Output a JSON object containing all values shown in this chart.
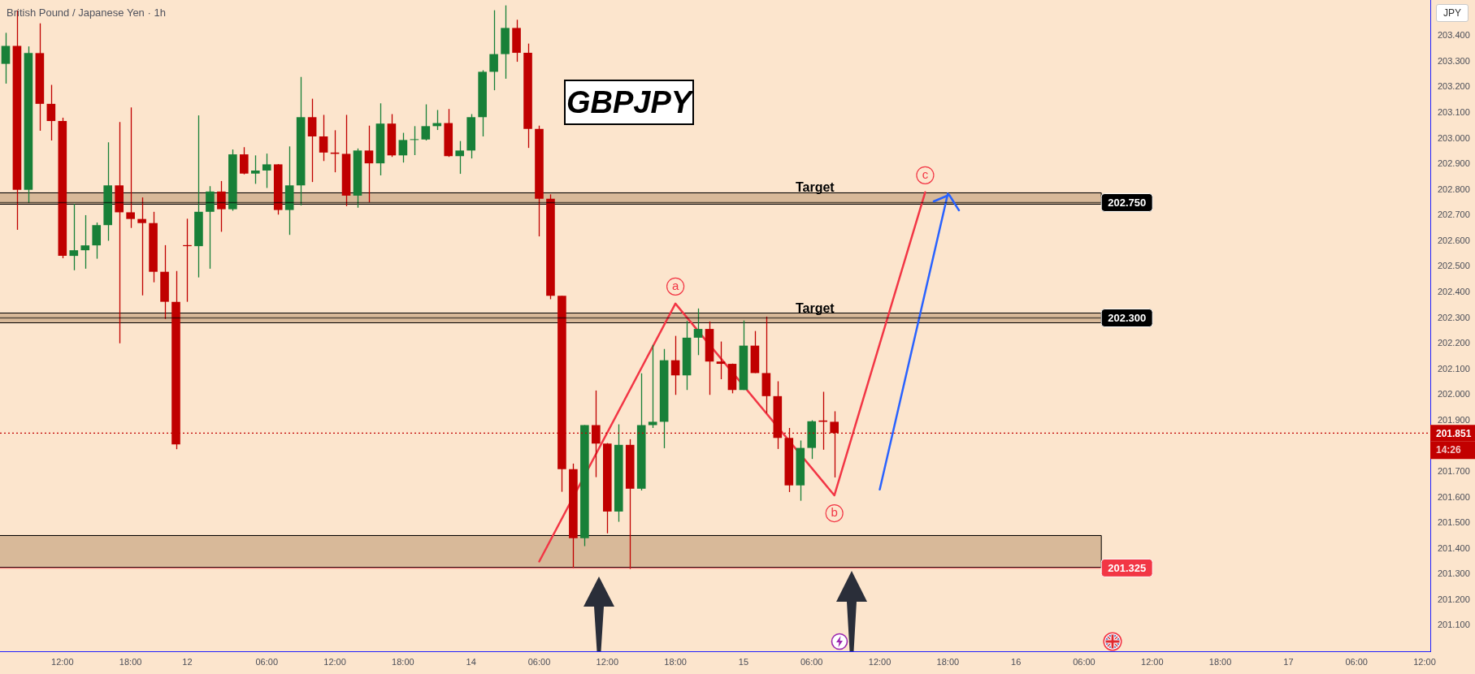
{
  "chart_data": {
    "type": "candlestick",
    "title": "GBPJPY",
    "subtitle": "British Pound / Japanese Yen · 1h",
    "ylabel": "JPY",
    "categories": [
      null,
      null,
      null,
      null,
      null,
      "12:00",
      null,
      null,
      null,
      null,
      null,
      "18:00",
      null,
      null,
      null,
      null,
      "12",
      null,
      null,
      null,
      null,
      null,
      null,
      "06:00",
      null,
      null,
      null,
      null,
      null,
      "12:00",
      null,
      null,
      null,
      null,
      null,
      "18:00",
      null,
      null,
      null,
      null,
      null,
      "14",
      null,
      null,
      null,
      null,
      null,
      "06:00",
      null,
      null,
      null,
      null,
      null,
      "12:00",
      null,
      null,
      null,
      null,
      null,
      "18:00",
      null,
      null,
      null,
      null,
      null,
      "15",
      null,
      null,
      null,
      null,
      null,
      "06:00",
      null,
      null,
      null,
      null,
      null,
      "12:00",
      null,
      null,
      null,
      null,
      null,
      "18:00",
      null,
      null,
      null,
      null,
      null,
      "16",
      null,
      null,
      null,
      null,
      null,
      "06:00",
      null,
      null,
      null,
      null,
      null,
      "12:00",
      null,
      null,
      null,
      null,
      null,
      "18:00",
      null,
      null,
      null,
      null,
      null,
      "17",
      null,
      null,
      null,
      null,
      null,
      "06:00",
      null,
      null,
      null,
      null,
      null,
      "12:00"
    ],
    "ohlc": [
      [
        203.291,
        203.412,
        203.214,
        203.361
      ],
      [
        203.361,
        203.5,
        202.644,
        202.8
      ],
      [
        202.8,
        203.359,
        202.749,
        203.333
      ],
      [
        203.333,
        203.449,
        203.03,
        203.135
      ],
      [
        203.135,
        203.209,
        202.992,
        203.068
      ],
      [
        203.068,
        203.081,
        202.533,
        202.542
      ],
      [
        202.542,
        202.745,
        202.486,
        202.564
      ],
      [
        202.564,
        202.701,
        202.492,
        202.583
      ],
      [
        202.583,
        202.672,
        202.531,
        202.662
      ],
      [
        202.662,
        202.985,
        202.601,
        202.817
      ],
      [
        202.817,
        203.064,
        202.201,
        202.712
      ],
      [
        202.712,
        203.121,
        202.651,
        202.686
      ],
      [
        202.686,
        202.77,
        202.388,
        202.67
      ],
      [
        202.67,
        202.714,
        202.439,
        202.48
      ],
      [
        202.48,
        202.584,
        202.296,
        202.363
      ],
      [
        202.363,
        202.483,
        201.788,
        201.807
      ],
      [
        202.584,
        202.687,
        202.363,
        202.58
      ],
      [
        202.58,
        203.09,
        202.458,
        202.714
      ],
      [
        202.714,
        202.814,
        202.492,
        202.793
      ],
      [
        202.793,
        202.834,
        202.636,
        202.724
      ],
      [
        202.724,
        202.957,
        202.718,
        202.938
      ],
      [
        202.938,
        202.966,
        202.86,
        202.863
      ],
      [
        202.863,
        202.934,
        202.823,
        202.875
      ],
      [
        202.875,
        202.941,
        202.807,
        202.899
      ],
      [
        202.899,
        202.9,
        202.703,
        202.721
      ],
      [
        202.721,
        202.969,
        202.624,
        202.817
      ],
      [
        202.817,
        203.24,
        202.739,
        203.083
      ],
      [
        203.083,
        203.155,
        202.83,
        203.008
      ],
      [
        203.008,
        203.092,
        202.912,
        202.945
      ],
      [
        202.945,
        203.032,
        202.868,
        202.94
      ],
      [
        202.94,
        203.092,
        202.736,
        202.777
      ],
      [
        202.777,
        202.961,
        202.73,
        202.953
      ],
      [
        202.953,
        203.05,
        202.751,
        202.903
      ],
      [
        202.903,
        203.137,
        202.856,
        203.058
      ],
      [
        203.058,
        203.095,
        202.928,
        202.934
      ],
      [
        202.934,
        203.022,
        202.906,
        202.994
      ],
      [
        202.994,
        203.048,
        202.935,
        202.996
      ],
      [
        202.996,
        203.133,
        202.992,
        203.048
      ],
      [
        203.048,
        203.111,
        203.033,
        203.06
      ],
      [
        203.06,
        203.115,
        202.928,
        202.931
      ],
      [
        202.931,
        202.99,
        202.862,
        202.953
      ],
      [
        202.953,
        203.095,
        202.922,
        203.083
      ],
      [
        203.083,
        203.266,
        203.008,
        203.26
      ],
      [
        203.26,
        203.5,
        203.188,
        203.329
      ],
      [
        203.329,
        203.519,
        203.233,
        203.431
      ],
      [
        203.431,
        203.463,
        203.299,
        203.334
      ],
      [
        203.334,
        203.37,
        202.963,
        203.037
      ],
      [
        203.037,
        203.05,
        202.618,
        202.765
      ],
      [
        202.765,
        202.782,
        202.373,
        202.386
      ],
      [
        202.386,
        202.386,
        201.622,
        201.71
      ],
      [
        201.71,
        201.732,
        201.325,
        201.441
      ],
      [
        201.441,
        201.882,
        201.41,
        201.882
      ],
      [
        201.882,
        202.017,
        201.679,
        201.81
      ],
      [
        201.81,
        201.812,
        201.46,
        201.545
      ],
      [
        201.545,
        201.885,
        201.505,
        201.805
      ],
      [
        201.805,
        201.827,
        201.321,
        201.634
      ],
      [
        201.634,
        202.084,
        201.627,
        201.882
      ],
      [
        201.882,
        202.195,
        201.871,
        201.895
      ],
      [
        201.895,
        202.179,
        201.792,
        202.135
      ],
      [
        202.135,
        202.23,
        202.0,
        202.076
      ],
      [
        202.076,
        202.288,
        202.019,
        202.223
      ],
      [
        202.223,
        202.337,
        202.155,
        202.257
      ],
      [
        202.257,
        202.286,
        202.0,
        202.13
      ],
      [
        202.13,
        202.208,
        202.061,
        202.121
      ],
      [
        202.121,
        202.122,
        202.006,
        202.019
      ],
      [
        202.019,
        202.29,
        202.019,
        202.192
      ],
      [
        202.192,
        202.249,
        202.085,
        202.085
      ],
      [
        202.085,
        202.305,
        201.929,
        201.995
      ],
      [
        201.995,
        202.053,
        201.789,
        201.832
      ],
      [
        201.832,
        201.871,
        201.621,
        201.647
      ],
      [
        201.647,
        201.822,
        201.587,
        201.793
      ],
      [
        201.793,
        201.901,
        201.75,
        201.897
      ],
      [
        201.9,
        202.012,
        201.786,
        201.895
      ],
      [
        201.895,
        201.936,
        201.678,
        201.851
      ],
      null,
      null,
      null,
      null,
      null,
      null,
      null,
      null,
      null,
      null,
      null,
      null,
      null,
      null,
      null,
      null,
      null,
      null,
      null,
      null,
      null,
      null,
      null,
      null,
      null,
      null,
      null,
      null,
      null,
      null,
      null,
      null,
      null,
      null,
      null,
      null,
      null,
      null,
      null,
      null,
      null,
      null,
      null,
      null,
      null,
      null,
      null,
      null,
      null,
      null,
      null,
      null
    ],
    "colors": [
      "#188038",
      "#c00000",
      "#188038",
      "#c00000",
      "#c00000",
      "#c00000",
      "#188038",
      "#188038",
      "#188038",
      "#188038",
      "#c00000",
      "#c00000",
      "#c00000",
      "#c00000",
      "#c00000",
      "#c00000",
      "#c00000",
      "#188038",
      "#188038",
      "#c00000",
      "#188038",
      "#c00000",
      "#188038",
      "#188038",
      "#c00000",
      "#188038",
      "#188038",
      "#c00000",
      "#c00000",
      "#c00000",
      "#c00000",
      "#188038",
      "#c00000",
      "#188038",
      "#c00000",
      "#188038",
      "#188038",
      "#188038",
      "#188038",
      "#c00000",
      "#188038",
      "#188038",
      "#188038",
      "#188038",
      "#188038",
      "#c00000",
      "#c00000",
      "#c00000",
      "#c00000",
      "#c00000",
      "#c00000",
      "#188038",
      "#c00000",
      "#c00000",
      "#188038",
      "#c00000",
      "#188038",
      "#188038",
      "#188038",
      "#c00000",
      "#188038",
      "#188038",
      "#c00000",
      "#c00000",
      "#c00000",
      "#188038",
      "#c00000",
      "#c00000",
      "#c00000",
      "#c00000",
      "#188038",
      "#188038",
      "#c00000",
      "#c00000",
      null,
      null,
      null,
      null,
      null,
      null,
      null,
      null,
      null,
      null,
      null,
      null,
      null,
      null,
      null,
      null,
      null,
      null,
      null,
      null,
      null,
      null,
      null,
      null,
      null,
      null,
      null,
      null,
      null,
      null,
      null,
      null,
      null,
      null,
      null,
      null,
      null,
      null,
      null,
      null,
      null,
      null,
      null,
      null,
      null,
      null,
      null,
      null,
      null,
      null,
      null,
      null
    ],
    "series": [
      {
        "type": "line",
        "color": "#f23645",
        "values": [
          null,
          null,
          null,
          null,
          null,
          null,
          null,
          null,
          null,
          null,
          null,
          null,
          null,
          null,
          null,
          null,
          null,
          null,
          null,
          null,
          null,
          null,
          null,
          null,
          null,
          null,
          null,
          null,
          null,
          null,
          null,
          null,
          null,
          null,
          null,
          null,
          null,
          null,
          null,
          null,
          null,
          null,
          null,
          null,
          null,
          null,
          null,
          201.35,
          null,
          null,
          null,
          null,
          null,
          null,
          null,
          null,
          null,
          null,
          null,
          202.356,
          null,
          null,
          null,
          null,
          null,
          null,
          null,
          null,
          null,
          null,
          null,
          null,
          null,
          201.608,
          null,
          null,
          null,
          null,
          null,
          null,
          null,
          202.79,
          null,
          null,
          null,
          null,
          null,
          null,
          null,
          null,
          null,
          null,
          null,
          null,
          null,
          null,
          null,
          null,
          null,
          null,
          null,
          null,
          null,
          null,
          null,
          null,
          null,
          null,
          null,
          null,
          null,
          null,
          null,
          null,
          null,
          null,
          null,
          null,
          null,
          null,
          null,
          null,
          null,
          null,
          null,
          null
        ]
      },
      {
        "type": "line",
        "color": "#2962ff",
        "values": [
          null,
          null,
          null,
          null,
          null,
          null,
          null,
          null,
          null,
          null,
          null,
          null,
          null,
          null,
          null,
          null,
          null,
          null,
          null,
          null,
          null,
          null,
          null,
          null,
          null,
          null,
          null,
          null,
          null,
          null,
          null,
          null,
          null,
          null,
          null,
          null,
          null,
          null,
          null,
          null,
          null,
          null,
          null,
          null,
          null,
          null,
          null,
          null,
          null,
          null,
          null,
          null,
          null,
          null,
          null,
          null,
          null,
          null,
          null,
          null,
          null,
          null,
          null,
          null,
          null,
          null,
          null,
          null,
          null,
          null,
          null,
          null,
          null,
          null,
          null,
          null,
          null,
          201.631,
          null,
          null,
          null,
          null,
          null,
          202.785,
          null,
          null,
          null,
          null,
          null,
          null,
          null,
          null,
          null,
          null,
          null,
          null,
          null,
          null,
          null,
          null,
          null,
          null,
          null,
          null,
          null,
          null,
          null,
          null,
          null,
          null,
          null,
          null,
          null,
          null,
          null,
          null,
          null,
          null,
          null,
          null,
          null,
          null,
          null,
          null,
          null,
          null
        ]
      }
    ],
    "ylim": [
      201.0,
      203.54
    ],
    "yticks": [
      {
        "value": 201.1,
        "label": "201.100"
      },
      {
        "value": 201.2,
        "label": "201.200"
      },
      {
        "value": 201.3,
        "label": "201.300"
      },
      {
        "value": 201.4,
        "label": "201.400"
      },
      {
        "value": 201.5,
        "label": "201.500"
      },
      {
        "value": 201.6,
        "label": "201.600"
      },
      {
        "value": 201.7,
        "label": "201.700"
      },
      {
        "value": 201.9,
        "label": "201.900"
      },
      {
        "value": 202.0,
        "label": "202.000"
      },
      {
        "value": 202.1,
        "label": "202.100"
      },
      {
        "value": 202.2,
        "label": "202.200"
      },
      {
        "value": 202.3,
        "label": "202.300"
      },
      {
        "value": 202.4,
        "label": "202.400"
      },
      {
        "value": 202.5,
        "label": "202.500"
      },
      {
        "value": 202.6,
        "label": "202.600"
      },
      {
        "value": 202.7,
        "label": "202.700"
      },
      {
        "value": 202.8,
        "label": "202.800"
      },
      {
        "value": 202.9,
        "label": "202.900"
      },
      {
        "value": 203.0,
        "label": "203.000"
      },
      {
        "value": 203.1,
        "label": "203.100"
      },
      {
        "value": 203.2,
        "label": "203.200"
      },
      {
        "value": 203.3,
        "label": "203.300"
      },
      {
        "value": 203.4,
        "label": "203.400"
      }
    ],
    "bands": [
      {
        "axis": "y",
        "from": 202.745,
        "to": 202.79,
        "label": "Target",
        "color": "#d8b999"
      },
      {
        "axis": "y",
        "from": 202.283,
        "to": 202.32,
        "label": "Target",
        "color": "#d8b999"
      },
      {
        "axis": "y",
        "from": 201.33,
        "to": 201.454,
        "color": "#d8b999"
      }
    ],
    "ref_lines": [
      {
        "axis": "y",
        "value": 202.75,
        "label": "202.750",
        "color": "#000000",
        "line_style": "solid"
      },
      {
        "axis": "y",
        "value": 202.3,
        "label": "202.300",
        "color": "#000000",
        "line_style": "solid"
      },
      {
        "axis": "y",
        "value": 201.325,
        "label": "201.325",
        "color": "#f23645",
        "line_style": "solid"
      },
      {
        "axis": "y",
        "value": 201.851,
        "label": "201.851",
        "color": "#c20000",
        "line_style": "dotted"
      }
    ],
    "annotations": [
      {
        "text": "a",
        "y": 202.356
      },
      {
        "text": "b",
        "y": 201.608
      },
      {
        "text": "c",
        "y": 202.79
      },
      "14:26"
    ]
  }
}
